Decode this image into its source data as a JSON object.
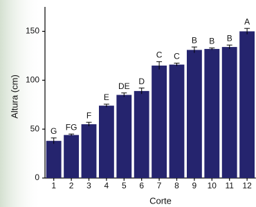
{
  "chart_data": {
    "type": "bar",
    "x_label": "Corte",
    "y_label": "Altura (cm)",
    "categories": [
      "1",
      "2",
      "3",
      "4",
      "5",
      "6",
      "7",
      "8",
      "9",
      "10",
      "11",
      "12"
    ],
    "values": [
      38,
      44,
      55,
      74,
      85,
      89,
      115,
      116,
      131,
      132,
      134,
      150
    ],
    "errors": [
      3,
      1,
      2,
      1.5,
      2,
      3,
      4,
      1.5,
      3,
      1,
      2,
      3
    ],
    "annotations": [
      "G",
      "FG",
      "F",
      "E",
      "DE",
      "D",
      "C",
      "C",
      "B",
      "B",
      "B",
      "A"
    ],
    "color": "#25246e",
    "ylim": [
      0,
      175
    ],
    "yticks": [
      0,
      50,
      100,
      150
    ],
    "grid": false
  }
}
